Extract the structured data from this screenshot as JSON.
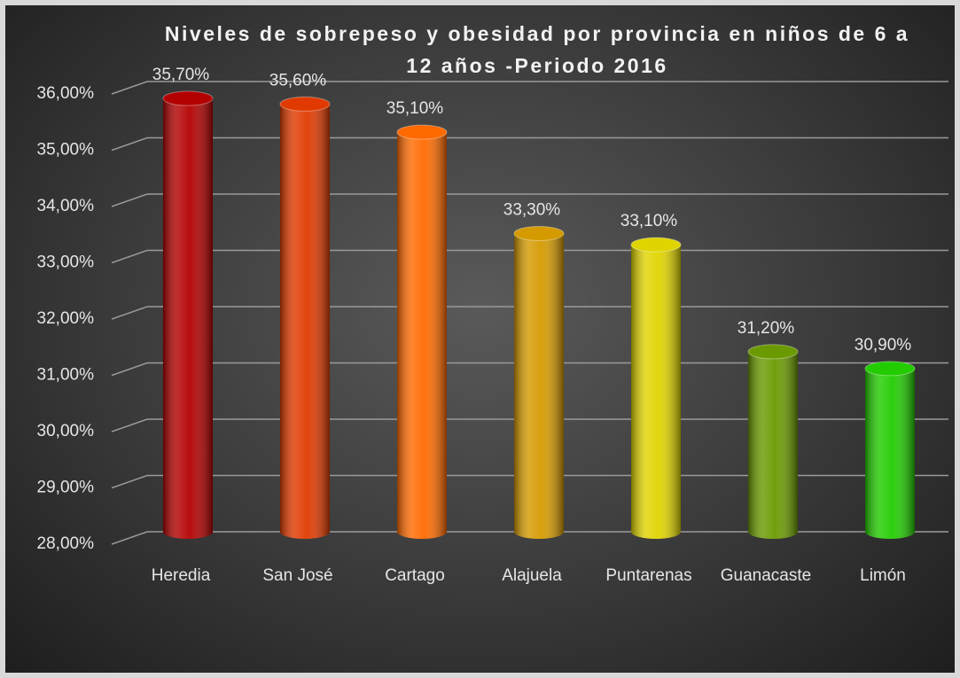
{
  "chart_data": {
    "type": "bar",
    "title": "Niveles de sobrepeso y obesidad por provincia en niños de 6 a 12 años -Periodo 2016",
    "categories": [
      "Heredia",
      "San José",
      "Cartago",
      "Alajuela",
      "Puntarenas",
      "Guanacaste",
      "Limón"
    ],
    "values": [
      35.7,
      35.6,
      35.1,
      33.3,
      33.1,
      31.2,
      30.9
    ],
    "value_labels": [
      "35,70%",
      "35,60%",
      "35,10%",
      "33,30%",
      "33,10%",
      "31,20%",
      "30,90%"
    ],
    "colors": [
      "#b30000",
      "#e03a00",
      "#ff6a00",
      "#d49a00",
      "#e0d400",
      "#6a9a00",
      "#22cc00"
    ],
    "ylim": [
      28,
      36
    ],
    "yticks": [
      {
        "value": 28,
        "label": "28,00%"
      },
      {
        "value": 29,
        "label": "29,00%"
      },
      {
        "value": 30,
        "label": "30,00%"
      },
      {
        "value": 31,
        "label": "31,00%"
      },
      {
        "value": 32,
        "label": "32,00%"
      },
      {
        "value": 33,
        "label": "33,00%"
      },
      {
        "value": 34,
        "label": "34,00%"
      },
      {
        "value": 35,
        "label": "35,00%"
      },
      {
        "value": 36,
        "label": "36,00%"
      }
    ],
    "grid": true
  }
}
